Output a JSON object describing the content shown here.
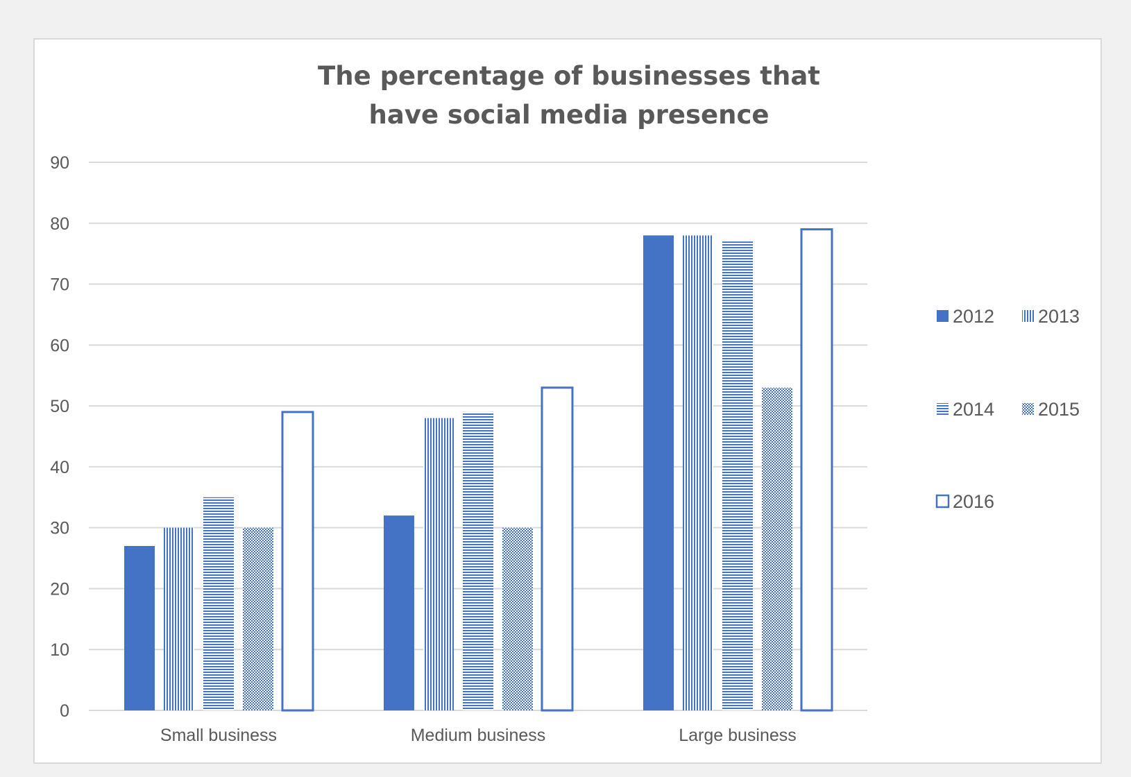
{
  "chart_data": {
    "type": "bar",
    "title": "The percentage of businesses that have social media presence",
    "title_lines": [
      "The percentage of businesses that",
      "have social media presence"
    ],
    "categories": [
      "Small business",
      "Medium business",
      "Large business"
    ],
    "series": [
      {
        "name": "2012",
        "pattern": "solid",
        "values": [
          27,
          32,
          78
        ]
      },
      {
        "name": "2013",
        "pattern": "vertical-stripes",
        "values": [
          30,
          48,
          78
        ]
      },
      {
        "name": "2014",
        "pattern": "horizontal-stripes",
        "values": [
          35,
          49,
          77
        ]
      },
      {
        "name": "2015",
        "pattern": "checker",
        "values": [
          30,
          30,
          53
        ]
      },
      {
        "name": "2016",
        "pattern": "outline",
        "values": [
          49,
          53,
          79
        ]
      }
    ],
    "y_ticks": [
      "0",
      "10",
      "20",
      "30",
      "40",
      "50",
      "60",
      "70",
      "80",
      "90"
    ],
    "ylim": [
      0,
      90
    ],
    "xlabel": "",
    "ylabel": "",
    "grid": true,
    "legend_position": "right",
    "colors": {
      "bar": "#4472c4",
      "grid": "#d9d9d9",
      "text": "#595959"
    }
  }
}
